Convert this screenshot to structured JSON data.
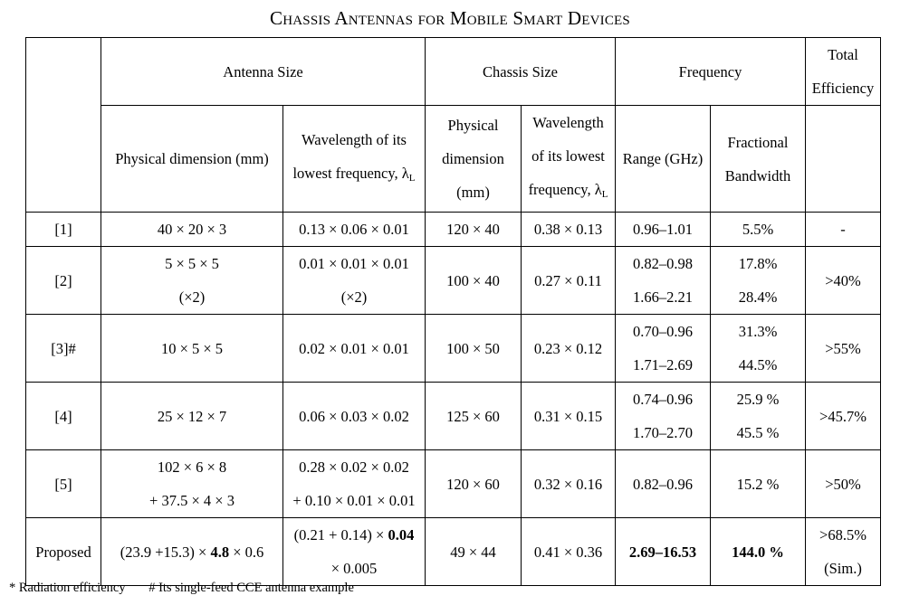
{
  "title": "Chassis Antennas for Mobile Smart Devices",
  "header": {
    "antenna_size": "Antenna Size",
    "chassis_size": "Chassis Size",
    "frequency": "Frequency",
    "total_efficiency_1": "Total",
    "total_efficiency_2": "Efficiency",
    "physical_dimension_mm": "Physical dimension (mm)",
    "wavelength_1": "Wavelength of its",
    "wavelength_2": "lowest frequency, λ",
    "wavelength_sub": "L",
    "chassis_physical_1": "Physical",
    "chassis_physical_2": "dimension",
    "chassis_physical_3": "(mm)",
    "chassis_wavelength_1": "Wavelength",
    "chassis_wavelength_2": "of its lowest",
    "chassis_wavelength_3": "frequency, λ",
    "chassis_wavelength_sub": "L",
    "range": "Range (GHz)",
    "fractional_1": "Fractional",
    "fractional_2": "Bandwidth"
  },
  "rows": [
    {
      "ref": "[1]",
      "dim": [
        "40 × 20 × 3"
      ],
      "wave": [
        "0.13 × 0.06 × 0.01"
      ],
      "chassis_dim": "120 × 40",
      "chassis_wave": "0.38 × 0.13",
      "range": [
        "0.96–1.01"
      ],
      "bw": [
        "5.5%"
      ],
      "eff": [
        "-"
      ]
    },
    {
      "ref": "[2]",
      "dim": [
        "5 × 5 × 5",
        "(×2)"
      ],
      "wave": [
        "0.01 × 0.01 × 0.01",
        "(×2)"
      ],
      "chassis_dim": "100 × 40",
      "chassis_wave": "0.27 × 0.11",
      "range": [
        "0.82–0.98",
        "1.66–2.21"
      ],
      "bw": [
        "17.8%",
        "28.4%"
      ],
      "eff": [
        ">40%"
      ]
    },
    {
      "ref": "[3]#",
      "dim": [
        "10 × 5 × 5"
      ],
      "wave": [
        "0.02 × 0.01 × 0.01"
      ],
      "chassis_dim": "100 × 50",
      "chassis_wave": "0.23 × 0.12",
      "range": [
        "0.70–0.96",
        "1.71–2.69"
      ],
      "bw": [
        "31.3%",
        "44.5%"
      ],
      "eff": [
        ">55%"
      ]
    },
    {
      "ref": "[4]",
      "dim": [
        "25 × 12 × 7"
      ],
      "wave": [
        "0.06 × 0.03 × 0.02"
      ],
      "chassis_dim": "125 × 60",
      "chassis_wave": "0.31 × 0.15",
      "range": [
        "0.74–0.96",
        "1.70–2.70"
      ],
      "bw": [
        "25.9 %",
        "45.5 %"
      ],
      "eff": [
        ">45.7%"
      ]
    },
    {
      "ref": "[5]",
      "dim": [
        "102 × 6 × 8",
        "+ 37.5 × 4 × 3"
      ],
      "wave": [
        "0.28 × 0.02 × 0.02",
        "+ 0.10 × 0.01 × 0.01"
      ],
      "chassis_dim": "120 × 60",
      "chassis_wave": "0.32 × 0.16",
      "range": [
        "0.82–0.96"
      ],
      "bw": [
        "15.2 %"
      ],
      "eff": [
        ">50%"
      ]
    }
  ],
  "proposed": {
    "ref": "Proposed",
    "dim_pre": "(23.9 +15.3) × ",
    "dim_bold": "4.8",
    "dim_post": " × 0.6",
    "wave_pre": "(0.21 + 0.14) × ",
    "wave_bold": "0.04",
    "wave_line2": "× 0.005",
    "chassis_dim": "49 × 44",
    "chassis_wave": "0.41 × 0.36",
    "range": "2.69–16.53",
    "bw": "144.0 %",
    "eff_1": ">68.5%",
    "eff_2": "(Sim.)"
  },
  "footnotes": {
    "radiation": "* Radiation efficiency",
    "single_feed": "# Its single-feed CCE antenna example"
  }
}
